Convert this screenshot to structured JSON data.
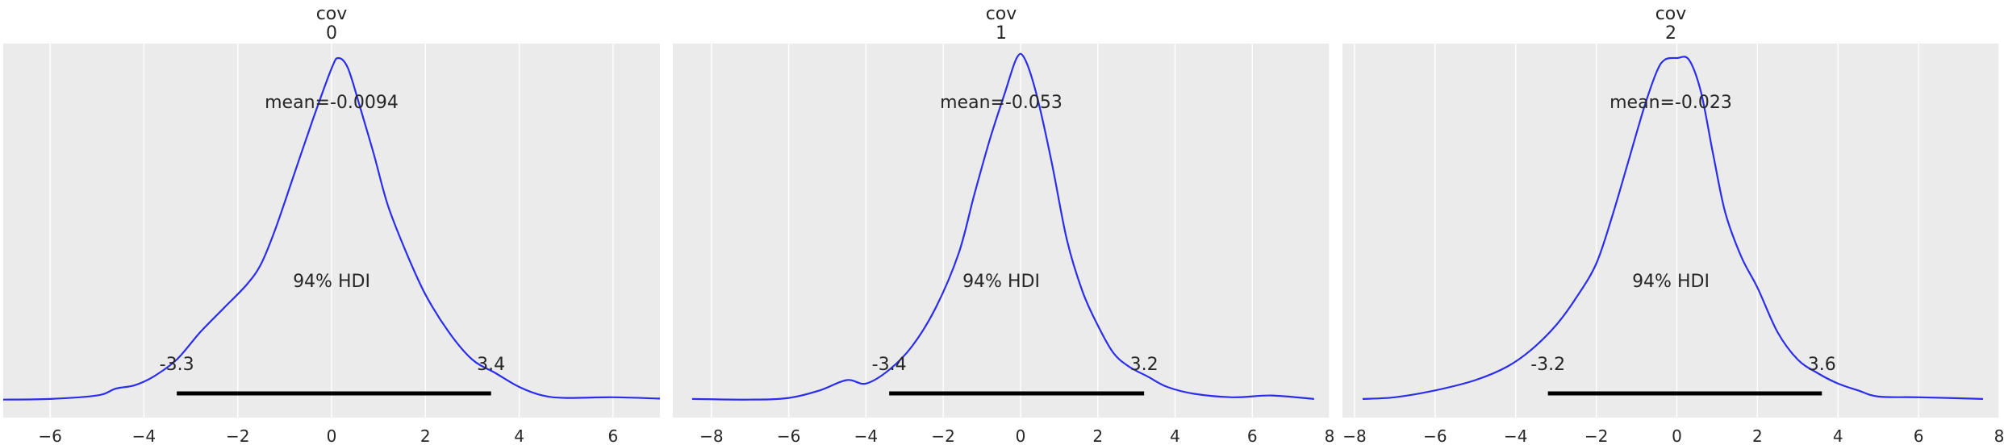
{
  "colors": {
    "background": "#ebebeb",
    "grid": "#ffffff",
    "curve": "#2a2eec",
    "hdi_bar": "#000000",
    "text": "#262626"
  },
  "chart_data": [
    {
      "type": "line",
      "title": "cov\n0",
      "title_lines": [
        "cov",
        "0"
      ],
      "mean_label": "mean=-0.0094",
      "hdi_label": "94% HDI",
      "hdi": [
        -3.3,
        3.4
      ],
      "hdi_labels": [
        "-3.3",
        "3.4"
      ],
      "xlim": [
        -7.0,
        7.0
      ],
      "xticks": [
        -6,
        -4,
        -2,
        0,
        2,
        4,
        6
      ],
      "xtick_labels": [
        "−6",
        "−4",
        "−2",
        "0",
        "2",
        "4",
        "6"
      ],
      "grid": true,
      "density": {
        "x": [
          -7.0,
          -6.0,
          -5.0,
          -4.6,
          -4.2,
          -3.8,
          -3.3,
          -2.8,
          -2.3,
          -1.8,
          -1.5,
          -1.2,
          -0.8,
          -0.4,
          0.0,
          0.15,
          0.35,
          0.6,
          0.9,
          1.2,
          1.6,
          2.0,
          2.5,
          3.0,
          3.5,
          4.0,
          4.5,
          5.0,
          6.0,
          7.0
        ],
        "y": [
          0.003,
          0.005,
          0.015,
          0.035,
          0.045,
          0.07,
          0.12,
          0.2,
          0.27,
          0.34,
          0.4,
          0.5,
          0.66,
          0.82,
          0.97,
          1.0,
          0.97,
          0.86,
          0.72,
          0.57,
          0.43,
          0.31,
          0.2,
          0.12,
          0.08,
          0.04,
          0.015,
          0.008,
          0.01,
          0.006
        ]
      }
    },
    {
      "type": "line",
      "title": "cov\n1",
      "title_lines": [
        "cov",
        "1"
      ],
      "mean_label": "mean=-0.053",
      "hdi_label": "94% HDI",
      "hdi": [
        -3.4,
        3.2
      ],
      "hdi_labels": [
        "-3.4",
        "3.2"
      ],
      "xlim": [
        -9.0,
        8.0
      ],
      "xticks": [
        -8,
        -6,
        -4,
        -2,
        0,
        2,
        4,
        6,
        8
      ],
      "xtick_labels": [
        "−8",
        "−6",
        "−4",
        "−2",
        "0",
        "2",
        "4",
        "6",
        "8"
      ],
      "grid": true,
      "density": {
        "x": [
          -8.5,
          -7.0,
          -6.0,
          -5.2,
          -4.5,
          -4.0,
          -3.4,
          -2.8,
          -2.2,
          -1.6,
          -1.2,
          -0.8,
          -0.4,
          -0.1,
          0.1,
          0.4,
          0.8,
          1.2,
          1.6,
          2.0,
          2.4,
          2.8,
          3.3,
          3.8,
          4.5,
          5.5,
          6.5,
          7.6
        ],
        "y": [
          0.005,
          0.003,
          0.008,
          0.03,
          0.06,
          0.05,
          0.09,
          0.16,
          0.27,
          0.43,
          0.6,
          0.76,
          0.9,
          1.0,
          1.0,
          0.9,
          0.7,
          0.47,
          0.32,
          0.22,
          0.14,
          0.1,
          0.07,
          0.04,
          0.02,
          0.01,
          0.015,
          0.005
        ]
      }
    },
    {
      "type": "line",
      "title": "cov\n2",
      "title_lines": [
        "cov",
        "2"
      ],
      "mean_label": "mean=-0.023",
      "hdi_label": "94% HDI",
      "hdi": [
        -3.2,
        3.6
      ],
      "hdi_labels": [
        "-3.2",
        "3.6"
      ],
      "xlim": [
        -8.3,
        8.0
      ],
      "xticks": [
        -8,
        -6,
        -4,
        -2,
        0,
        2,
        4,
        6,
        8
      ],
      "xtick_labels": [
        "−8",
        "−6",
        "−4",
        "−2",
        "0",
        "2",
        "4",
        "6",
        "8"
      ],
      "grid": true,
      "density": {
        "x": [
          -7.8,
          -7.0,
          -6.0,
          -5.0,
          -4.2,
          -3.6,
          -3.0,
          -2.5,
          -2.0,
          -1.6,
          -1.2,
          -0.8,
          -0.5,
          -0.3,
          0.0,
          0.3,
          0.6,
          0.9,
          1.2,
          1.6,
          2.0,
          2.5,
          3.0,
          3.5,
          4.0,
          4.5,
          5.0,
          6.0,
          7.6
        ],
        "y": [
          0.005,
          0.01,
          0.03,
          0.06,
          0.1,
          0.15,
          0.22,
          0.3,
          0.4,
          0.54,
          0.7,
          0.86,
          0.96,
          0.995,
          1.0,
          0.995,
          0.9,
          0.72,
          0.55,
          0.42,
          0.33,
          0.2,
          0.12,
          0.08,
          0.05,
          0.03,
          0.012,
          0.01,
          0.005
        ]
      }
    }
  ]
}
